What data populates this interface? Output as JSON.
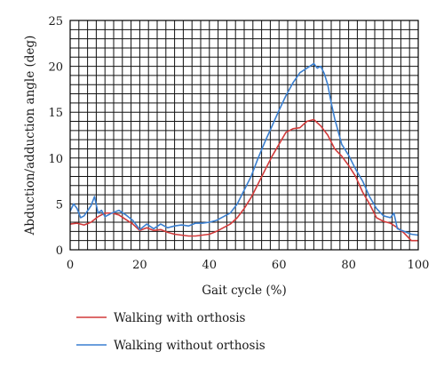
{
  "chart_data": {
    "type": "line",
    "title": "",
    "xlabel": "Gait cycle (%)",
    "ylabel": "Abduction/adduction angle (deg)",
    "xlim": [
      0,
      100
    ],
    "ylim": [
      0,
      25
    ],
    "x_ticks": [
      0,
      20,
      40,
      60,
      80,
      100
    ],
    "y_ticks": [
      0,
      5,
      10,
      15,
      20,
      25
    ],
    "grid": true,
    "legend_position": "bottom",
    "series": [
      {
        "name": "Walking with orthosis",
        "color": "#d23a3a",
        "x": [
          0,
          2,
          4,
          6,
          8,
          10,
          12,
          14,
          16,
          18,
          20,
          22,
          24,
          26,
          28,
          30,
          32,
          34,
          36,
          38,
          40,
          42,
          44,
          46,
          48,
          50,
          52,
          54,
          56,
          58,
          60,
          62,
          64,
          66,
          68,
          70,
          72,
          74,
          76,
          78,
          80,
          82,
          84,
          86,
          88,
          90,
          92,
          94,
          96,
          98,
          100
        ],
        "y": [
          2.8,
          2.9,
          2.7,
          3.0,
          3.6,
          4.0,
          4.0,
          3.8,
          3.3,
          2.8,
          2.1,
          2.4,
          2.1,
          2.2,
          1.9,
          1.7,
          1.6,
          1.5,
          1.5,
          1.6,
          1.7,
          2.0,
          2.4,
          2.8,
          3.5,
          4.5,
          5.7,
          7.2,
          8.7,
          10.2,
          11.5,
          12.8,
          13.2,
          13.3,
          14.0,
          14.2,
          13.5,
          12.5,
          11.0,
          10.2,
          9.2,
          8.0,
          6.3,
          5.0,
          3.5,
          3.1,
          2.9,
          2.4,
          1.8,
          1.0,
          1.0
        ]
      },
      {
        "name": "Walking without orthosis",
        "color": "#3a7fd0",
        "x": [
          0,
          1,
          2,
          3,
          4,
          6,
          7,
          8,
          9,
          10,
          12,
          14,
          16,
          18,
          20,
          22,
          24,
          26,
          28,
          30,
          32,
          34,
          36,
          38,
          40,
          42,
          44,
          46,
          48,
          50,
          52,
          54,
          56,
          58,
          60,
          62,
          64,
          66,
          68,
          70,
          71,
          72,
          73,
          74,
          75,
          76,
          78,
          80,
          82,
          84,
          86,
          88,
          90,
          92,
          93,
          94,
          96,
          98,
          100
        ],
        "y": [
          4.2,
          5.0,
          4.5,
          3.5,
          3.7,
          4.8,
          5.8,
          4.0,
          4.3,
          3.6,
          4.0,
          4.3,
          3.8,
          3.2,
          2.2,
          2.8,
          2.3,
          2.8,
          2.4,
          2.6,
          2.7,
          2.6,
          2.9,
          2.9,
          3.0,
          3.2,
          3.6,
          4.0,
          5.0,
          6.5,
          8.0,
          10.0,
          11.8,
          13.5,
          15.2,
          16.8,
          18.2,
          19.3,
          19.8,
          20.3,
          19.8,
          20.0,
          19.2,
          18.0,
          16.0,
          14.3,
          11.5,
          10.3,
          8.8,
          7.5,
          5.8,
          4.5,
          3.7,
          3.5,
          4.0,
          2.3,
          2.0,
          1.7,
          1.6
        ]
      }
    ]
  }
}
